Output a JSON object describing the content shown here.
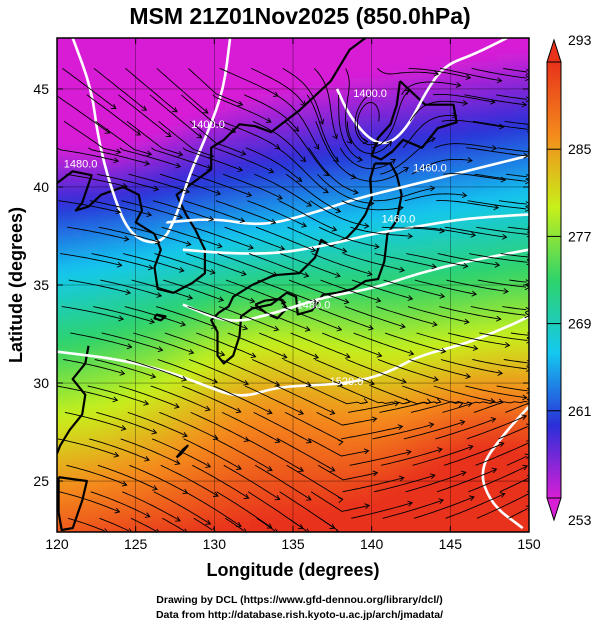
{
  "title": "MSM 21Z01Nov2025 (850.0hPa)",
  "x_axis_label": "Longitude (degrees)",
  "y_axis_label": "Latitude  (degrees)",
  "credits": {
    "line1": "Drawing by DCL (https://www.gfd-dennou.org/library/dcl/)",
    "line2": "Data from http://database.rish.kyoto-u.ac.jp/arch/jmadata/"
  },
  "chart_data": {
    "type": "heatmap",
    "title": "MSM 21Z01Nov2025 (850.0hPa)",
    "xlabel": "Longitude (degrees)",
    "ylabel": "Latitude  (degrees)",
    "xlim": [
      120,
      150
    ],
    "ylim": [
      22.4,
      47.6
    ],
    "x_ticks": [
      "120",
      "125",
      "130",
      "135",
      "140",
      "145",
      "150"
    ],
    "y_ticks": [
      "25",
      "30",
      "35",
      "40",
      "45"
    ],
    "grid": true,
    "overlays": [
      "coastlines",
      "streamlines",
      "geopotential-height-contours"
    ],
    "colorbar": {
      "min": 253,
      "max": 293,
      "ticks": [
        "253",
        "261",
        "269",
        "277",
        "285",
        "293"
      ],
      "colors": [
        "#d81fd6",
        "#2a2fd8",
        "#14c8f0",
        "#2ed36a",
        "#c8f01a",
        "#f58a1c",
        "#e8321a"
      ]
    },
    "contours": [
      {
        "label": "1480.0",
        "lon": 121.5,
        "lat": 41.0
      },
      {
        "label": "1400.0",
        "lon": 129.6,
        "lat": 43.0
      },
      {
        "label": "1400.0",
        "lon": 139.9,
        "lat": 44.6
      },
      {
        "label": "1460.0",
        "lon": 143.7,
        "lat": 40.8
      },
      {
        "label": "1460.0",
        "lon": 141.7,
        "lat": 38.2
      },
      {
        "label": "1480.0",
        "lon": 136.3,
        "lat": 33.8
      },
      {
        "label": "1520.0",
        "lon": 138.4,
        "lat": 29.9
      }
    ]
  }
}
